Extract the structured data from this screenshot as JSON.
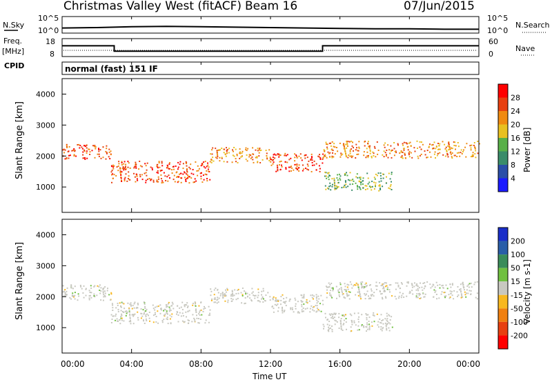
{
  "header": {
    "title": "Christmas Valley West (fitACF)",
    "beam": "Beam 16",
    "date": "07/Jun/2015"
  },
  "sky_panel": {
    "left_label": "N.Sky",
    "right_label": "N.Search",
    "ticks_left": [
      "10^5",
      "10^0"
    ],
    "ticks_right": [
      "10^5",
      "10^0"
    ]
  },
  "freq_panel": {
    "left_label_1": "Freq.",
    "left_label_2": "[MHz]",
    "right_label": "Nave",
    "ticks_left": [
      "18",
      "8"
    ],
    "ticks_right": [
      "60",
      "0"
    ]
  },
  "cpid": {
    "label": "CPID",
    "mode": "normal (fast) 151 IF"
  },
  "time_axis": {
    "label": "Time UT",
    "ticks": [
      "00:00",
      "04:00",
      "08:00",
      "12:00",
      "16:00",
      "20:00",
      "00:00"
    ]
  },
  "chart_data": [
    {
      "type": "line",
      "name": "sky_noise",
      "x_hours": [
        0,
        2,
        4,
        6,
        8,
        10,
        12,
        14,
        16,
        18,
        20,
        22,
        24
      ],
      "y_relative": [
        0.45,
        0.5,
        0.6,
        0.65,
        0.6,
        0.55,
        0.5,
        0.45,
        0.4,
        0.35,
        0.35,
        0.3,
        0.3
      ]
    },
    {
      "type": "line",
      "name": "frequency_step",
      "ylim": [
        8,
        18
      ],
      "x_hours": [
        0,
        3,
        3,
        15,
        15,
        24
      ],
      "y_values": [
        14,
        14,
        11,
        11,
        14,
        14
      ]
    },
    {
      "type": "heatmap",
      "name": "power",
      "ylabel": "Slant Range [km]",
      "xlabel": "Time UT",
      "xlim_hours": [
        0,
        24
      ],
      "ylim_km": [
        180,
        4500
      ],
      "yticks": [
        "1000",
        "2000",
        "3000",
        "4000"
      ],
      "colorbar_label": "Power [dB]",
      "colorbar_ticks": [
        "4",
        "8",
        "12",
        "16",
        "20",
        "24",
        "28"
      ],
      "colors": [
        "#1a1aff",
        "#2a4ea8",
        "#3a8c6a",
        "#58b048",
        "#e8c020",
        "#f08a10",
        "#e84010",
        "#ff0000"
      ],
      "bands": [
        {
          "t0": 0,
          "t1": 2.8,
          "r0": 1900,
          "r1": 2400,
          "level": 6
        },
        {
          "t0": 2.8,
          "t1": 8.5,
          "r0": 1150,
          "r1": 1850,
          "level": 6
        },
        {
          "t0": 8.5,
          "t1": 12,
          "r0": 1800,
          "r1": 2300,
          "level": 5
        },
        {
          "t0": 12,
          "t1": 15,
          "r0": 1500,
          "r1": 2100,
          "level": 6
        },
        {
          "t0": 15,
          "t1": 24,
          "r0": 1950,
          "r1": 2500,
          "level": 5
        },
        {
          "t0": 15,
          "t1": 19,
          "r0": 900,
          "r1": 1500,
          "level": 3
        }
      ]
    },
    {
      "type": "heatmap",
      "name": "velocity",
      "ylabel": "Slant Range [km]",
      "xlabel": "Time UT",
      "xlim_hours": [
        0,
        24
      ],
      "ylim_km": [
        180,
        4500
      ],
      "yticks": [
        "1000",
        "2000",
        "3000",
        "4000"
      ],
      "colorbar_label": "Velocity [m s-1]",
      "colorbar_ticks": [
        "200",
        "100",
        "50",
        "15",
        "-15",
        "-50",
        "-100",
        "-200"
      ],
      "colors": [
        "#1a2ec8",
        "#2a5ea8",
        "#3a8c5a",
        "#70c040",
        "#c8c8c0",
        "#f8b820",
        "#f08010",
        "#e84010",
        "#ff0000"
      ],
      "bands": [
        {
          "t0": 0,
          "t1": 2.8,
          "r0": 1900,
          "r1": 2400,
          "level": 4
        },
        {
          "t0": 2.8,
          "t1": 8.5,
          "r0": 1150,
          "r1": 1850,
          "level": 4
        },
        {
          "t0": 8.5,
          "t1": 12,
          "r0": 1800,
          "r1": 2300,
          "level": 4
        },
        {
          "t0": 12,
          "t1": 15,
          "r0": 1500,
          "r1": 2100,
          "level": 4
        },
        {
          "t0": 15,
          "t1": 24,
          "r0": 1950,
          "r1": 2500,
          "level": 4
        },
        {
          "t0": 15,
          "t1": 19,
          "r0": 900,
          "r1": 1500,
          "level": 4
        }
      ]
    }
  ]
}
